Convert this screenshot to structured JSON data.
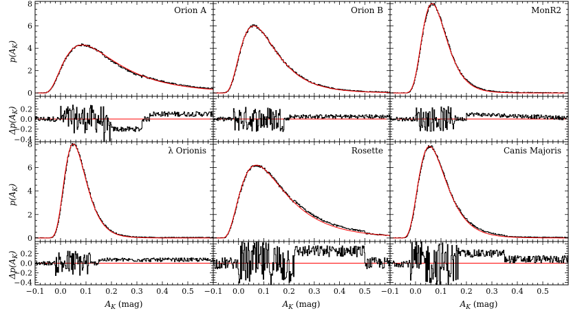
{
  "figure": {
    "ylabel_top": "p(A_K)",
    "ylabel_bottom": "Δp(A_K)",
    "xlabel": "A_K (mag)"
  },
  "axes": {
    "xlim": [
      -0.1,
      0.6
    ],
    "xticks": [
      -0.1,
      0.0,
      0.1,
      0.2,
      0.3,
      0.4,
      0.5
    ],
    "xtick_labels": [
      "−0.1",
      "0.0",
      "0.1",
      "0.2",
      "0.3",
      "0.4",
      "0.5"
    ],
    "ylim_main": [
      -0.3,
      8.2
    ],
    "yticks_main": [
      0,
      2,
      4,
      6,
      8
    ],
    "ylim_resid": [
      -0.45,
      0.45
    ],
    "yticks_resid": [
      0.2,
      0.0,
      -0.2,
      -0.4
    ],
    "ytick_labels_resid": [
      "0.2",
      "0.0",
      "−0.2",
      "−0.4"
    ]
  },
  "colors": {
    "data": "#000000",
    "model": "#ff0000"
  },
  "chart_data": [
    {
      "type": "line",
      "title": "Orion A",
      "model": {
        "type": "lognormal",
        "peak": 4.3,
        "mode": 0.085,
        "sigma": 0.62,
        "x0": -0.08
      },
      "residual_notes": "scatter ±0.3 near peak, negative dip around 0.2–0.3, ~+0.1 beyond 0.4"
    },
    {
      "type": "line",
      "title": "Orion B",
      "model": {
        "type": "lognormal",
        "peak": 6.0,
        "mode": 0.06,
        "sigma": 0.5,
        "x0": -0.08
      },
      "residual_notes": "scatter ±0.3 around 0.0–0.15, small positive beyond 0.2"
    },
    {
      "type": "line",
      "title": "MonR2",
      "model": {
        "type": "lognormal",
        "peak": 8.0,
        "mode": 0.065,
        "sigma": 0.33,
        "x0": -0.08
      },
      "residual_notes": "scatter ±0.3 around 0.05–0.15, ~+0.1 beyond 0.2"
    },
    {
      "type": "line",
      "title": "λ Orionis",
      "model": {
        "type": "lognormal",
        "peak": 8.0,
        "mode": 0.05,
        "sigma": 0.33,
        "x0": -0.08
      },
      "residual_notes": "scatter ±0.3 around 0.0–0.1, ~+0.07 beyond 0.15"
    },
    {
      "type": "line",
      "title": "Rosette",
      "model": {
        "type": "lognormal",
        "peak": 6.2,
        "mode": 0.07,
        "sigma": 0.58,
        "x0": -0.08
      },
      "residual_notes": "large scatter ±0.45 from 0.0 to 0.2, positive up to +0.4 around 0.3–0.45"
    },
    {
      "type": "line",
      "title": "Canis Majoris",
      "model": {
        "type": "lognormal",
        "peak": 7.8,
        "mode": 0.055,
        "sigma": 0.4,
        "x0": -0.08
      },
      "residual_notes": "large scatter ±0.45 from 0.0 to 0.15, ~+0.25 around 0.2–0.3"
    }
  ]
}
